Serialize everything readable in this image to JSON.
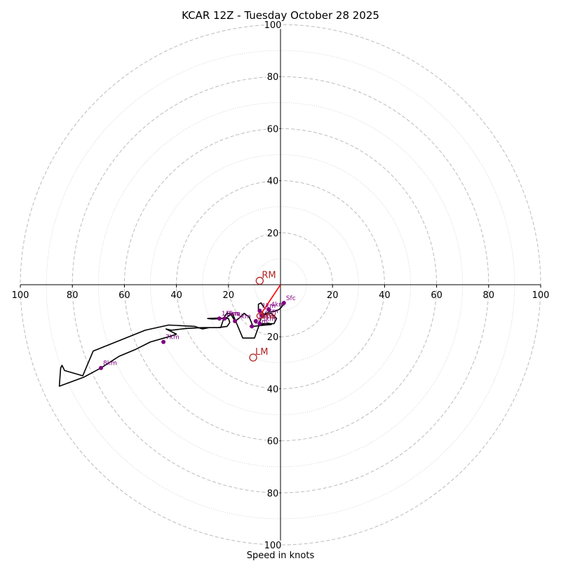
{
  "chart_data": {
    "type": "hodograph",
    "title": "KCAR 12Z - Tuesday October 28 2025",
    "xlabel": "Speed in knots",
    "range_knots": [
      -100,
      100
    ],
    "ring_major_step": 20,
    "ring_minor_step": 10,
    "x_ticks": [
      "100",
      "80",
      "60",
      "40",
      "20",
      "",
      "20",
      "40",
      "60",
      "80",
      "100"
    ],
    "y_ticks_top": [
      "100",
      "80",
      "60",
      "40",
      "20"
    ],
    "y_ticks_bottom": [
      "20",
      "40",
      "60",
      "80",
      "100"
    ],
    "colors": {
      "trace": "#000000",
      "height_markers": "#800080",
      "storm_motion": "#b22222",
      "shear_vector": "#ff0000",
      "rings": "#bbbbbb"
    },
    "trace_uv": [
      [
        1.3,
        -7.0
      ],
      [
        0.5,
        -8.5
      ],
      [
        -0.5,
        -9.5
      ],
      [
        -2.0,
        -10.2
      ],
      [
        -4.5,
        -10.5
      ],
      [
        -6.5,
        -11.5
      ],
      [
        -7.5,
        -13.0
      ],
      [
        -8.0,
        -14.5
      ],
      [
        -7.5,
        -15.5
      ],
      [
        -6.0,
        -15.0
      ],
      [
        -4.5,
        -14.8
      ],
      [
        -3.5,
        -15.3
      ],
      [
        -7.0,
        -15.6
      ],
      [
        -10.5,
        -16.0
      ],
      [
        -11.0,
        -15.0
      ],
      [
        -12.0,
        -12.5
      ],
      [
        -14.0,
        -11.0
      ],
      [
        -16.0,
        -13.0
      ],
      [
        -17.5,
        -14.0
      ],
      [
        -19.0,
        -11.5
      ],
      [
        -20.5,
        -10.8
      ],
      [
        -22.0,
        -13.0
      ],
      [
        -24.0,
        -12.8
      ],
      [
        -28.0,
        -13.0
      ],
      [
        -26.0,
        -13.2
      ],
      [
        -22.0,
        -13.0
      ],
      [
        -20.0,
        -13.0
      ],
      [
        -19.5,
        -14.5
      ],
      [
        -20.5,
        -16.0
      ],
      [
        -24.0,
        -16.5
      ],
      [
        -30.0,
        -16.5
      ],
      [
        -36.0,
        -16.8
      ],
      [
        -42.0,
        -17.5
      ],
      [
        -44.0,
        -17.0
      ],
      [
        -40.0,
        -19.0
      ],
      [
        -43.0,
        -20.0
      ],
      [
        -50.0,
        -22.0
      ],
      [
        -56.0,
        -25.0
      ],
      [
        -62.0,
        -27.5
      ],
      [
        -69.0,
        -32.0
      ],
      [
        -75.5,
        -35.5
      ],
      [
        -85.0,
        -39.0
      ],
      [
        -84.5,
        -32.0
      ],
      [
        -84.0,
        -31.0
      ],
      [
        -83.0,
        -33.0
      ],
      [
        -76.0,
        -35.0
      ],
      [
        -72.0,
        -25.5
      ],
      [
        -62.0,
        -21.5
      ],
      [
        -52.0,
        -17.5
      ],
      [
        -43.0,
        -15.5
      ],
      [
        -33.0,
        -16.0
      ],
      [
        -30.0,
        -17.0
      ],
      [
        -27.5,
        -16.5
      ],
      [
        -23.0,
        -16.5
      ],
      [
        -22.0,
        -13.5
      ],
      [
        -18.5,
        -11.0
      ],
      [
        -14.5,
        -20.5
      ],
      [
        -10.0,
        -20.5
      ],
      [
        -8.0,
        -15.0
      ],
      [
        -2.5,
        -15.0
      ],
      [
        -1.5,
        -13.0
      ],
      [
        -3.5,
        -11.0
      ],
      [
        -6.0,
        -11.5
      ],
      [
        -8.5,
        -9.5
      ],
      [
        -8.5,
        -7.5
      ],
      [
        -7.5,
        -7.0
      ],
      [
        -6.5,
        -8.5
      ]
    ],
    "height_markers": [
      {
        "label": "Sfc",
        "u": 1.3,
        "v": -7.0
      },
      {
        "label": "1km",
        "u": -8.0,
        "v": -10.0
      },
      {
        "label": "2km",
        "u": -7.0,
        "v": -12.0
      },
      {
        "label": "3km",
        "u": -8.0,
        "v": -15.0
      },
      {
        "label": "4km",
        "u": -4.5,
        "v": -9.5
      },
      {
        "label": "5km",
        "u": -17.5,
        "v": -14.0
      },
      {
        "label": "6km",
        "u": -11.0,
        "v": -16.0
      },
      {
        "label": "7km",
        "u": -45.0,
        "v": -22.0
      },
      {
        "label": "8km",
        "u": -69.0,
        "v": -32.0
      },
      {
        "label": "9km",
        "u": -21.5,
        "v": -13.0
      },
      {
        "label": "11km",
        "u": -23.5,
        "v": -13.0
      },
      {
        "label": "12km",
        "u": -9.5,
        "v": -14.0
      }
    ],
    "storm_motion": {
      "right_mover": {
        "label": "RM",
        "u": -8.0,
        "v": 1.5
      },
      "left_mover": {
        "label": "LM",
        "u": -10.5,
        "v": -28.0
      },
      "mean_wind": {
        "label": "MW",
        "u": -8.0,
        "v": -12.0
      }
    },
    "shear_vector": {
      "from": [
        0.0,
        0.0
      ],
      "to": [
        -8.0,
        -12.0
      ]
    }
  }
}
